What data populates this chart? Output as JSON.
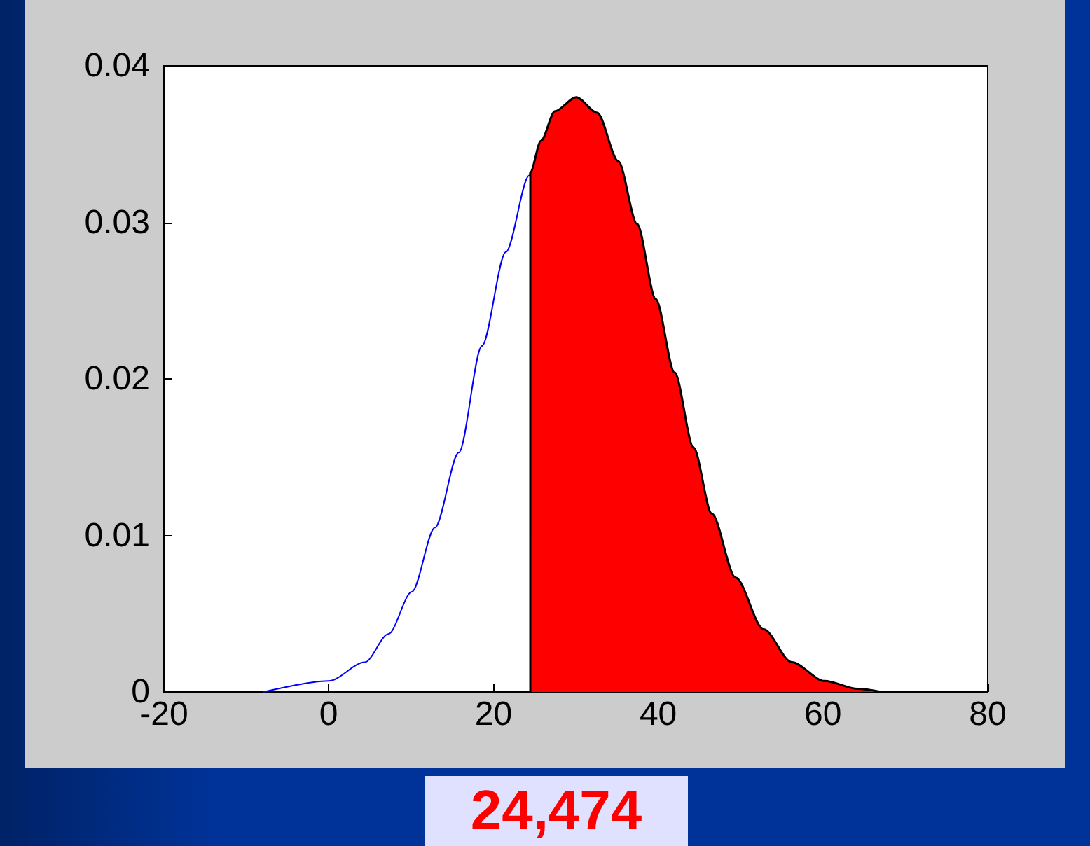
{
  "chart_data": {
    "type": "line",
    "xlim": [
      -20,
      80
    ],
    "ylim": [
      0,
      0.04
    ],
    "xticks": [
      -20,
      0,
      20,
      40,
      60,
      80
    ],
    "yticks": [
      0,
      0.01,
      0.02,
      0.03,
      0.04
    ],
    "grid": false,
    "marker": "none",
    "line_style": "solid",
    "series": [
      {
        "color": "#0000ff",
        "x": [
          -7.93,
          0,
          4.39,
          7.25,
          10.1,
          12.9,
          15.8,
          18.6,
          21.5,
          24.35,
          24.474
        ],
        "values": [
          0,
          0.0007,
          0.0019,
          0.0037,
          0.0064,
          0.0105,
          0.0153,
          0.0221,
          0.0281,
          0.033,
          0.0332
        ]
      },
      {
        "type": "area",
        "color": "#ff0000",
        "x": [
          24.474,
          24.474,
          25.76,
          27.47,
          30.03,
          32.6,
          35.16,
          37.44,
          39.7,
          42.0,
          44.3,
          46.5,
          49.4,
          52.8,
          56.2,
          60.2,
          64.2,
          67.1
        ],
        "values": [
          0,
          0.0332,
          0.0352,
          0.0371,
          0.038,
          0.037,
          0.0339,
          0.0299,
          0.0251,
          0.0204,
          0.0156,
          0.0114,
          0.0073,
          0.004,
          0.0019,
          0.0007,
          0.0002,
          0
        ]
      }
    ],
    "annotations": [
      "24,474"
    ]
  }
}
